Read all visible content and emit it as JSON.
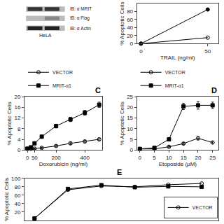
{
  "chart_data": [
    {
      "type": "blot",
      "categories": [
        "IB: α MRIT",
        "IB: α Flag",
        "IB: α Actin"
      ],
      "annotations": [
        "HeLA"
      ]
    },
    {
      "type": "line",
      "xlabel": "TRAIL (ng/ml)",
      "ylabel": "% Apoptotic Cells",
      "x": [
        0,
        50
      ],
      "xlim": [
        -3,
        58
      ],
      "ylim": [
        0,
        100
      ],
      "xticks": [
        0,
        50
      ],
      "yticks": [
        0,
        20,
        40,
        60,
        80
      ],
      "grid": false,
      "series": [
        {
          "values": [
            0,
            15
          ],
          "color": "#000000",
          "marker": "circle-open"
        },
        {
          "values": [
            0,
            85
          ],
          "color": "#000000",
          "marker": "circle"
        }
      ]
    },
    {
      "type": "line",
      "xlabel": "Doxorubicin (ng/ml)",
      "ylabel": "% Apoptotic Cells",
      "x": [
        0,
        25,
        50,
        100,
        200,
        300,
        400,
        500
      ],
      "xlim": [
        -20,
        520
      ],
      "ylim": [
        0,
        20
      ],
      "xticks": [
        0,
        50,
        200,
        400
      ],
      "yticks": [
        0,
        4,
        8,
        12,
        16,
        20
      ],
      "grid": false,
      "legend": "upper left",
      "annotations": [
        "C"
      ],
      "series": [
        {
          "name": "VECTOR",
          "values": [
            0.4,
            0.4,
            0.5,
            0.8,
            1.5,
            2.5,
            3.2,
            4.0
          ],
          "errors": [
            0.2,
            0.2,
            0.3,
            0.3,
            0.4,
            0.5,
            0.5,
            0.5
          ],
          "color": "#000000",
          "marker": "circle-open"
        },
        {
          "name": "MRIT-α1",
          "values": [
            0.5,
            1.0,
            2.5,
            5.0,
            9.0,
            11.5,
            14.0,
            17.0
          ],
          "errors": [
            0.3,
            0.4,
            0.5,
            0.6,
            0.7,
            0.8,
            0.9,
            1.0
          ],
          "color": "#000000",
          "marker": "square"
        }
      ]
    },
    {
      "type": "line",
      "xlabel": "Etoposide (μM)",
      "ylabel": "% Apoptotic Cells",
      "x": [
        0,
        5,
        10,
        15,
        20,
        25
      ],
      "xlim": [
        -1,
        27
      ],
      "ylim": [
        0,
        25
      ],
      "xticks": [
        0,
        5,
        10,
        15,
        20,
        25
      ],
      "yticks": [
        0,
        5,
        10,
        15,
        20,
        25
      ],
      "grid": false,
      "legend": "upper left",
      "annotations": [
        "D"
      ],
      "series": [
        {
          "name": "VECTOR",
          "values": [
            0.5,
            0.5,
            1.5,
            3.0,
            5.5,
            3.5
          ],
          "errors": [
            0.3,
            0.3,
            0.4,
            0.5,
            0.8,
            0.6
          ],
          "color": "#000000",
          "marker": "circle-open"
        },
        {
          "name": "MRIT-α1",
          "values": [
            0.5,
            1.0,
            5.0,
            20.5,
            21.0,
            21.0
          ],
          "errors": [
            0.3,
            0.4,
            0.7,
            1.5,
            1.8,
            1.5
          ],
          "color": "#000000",
          "marker": "square"
        }
      ]
    },
    {
      "type": "line",
      "ylabel": "% Apoptotic Cells",
      "x": [
        0,
        1,
        2,
        3,
        4,
        5
      ],
      "xlim": [
        -0.3,
        5.5
      ],
      "ylim": [
        0,
        100
      ],
      "yticks": [
        20,
        40,
        60,
        80,
        100
      ],
      "grid": false,
      "legend": "lower right",
      "tick_labels": "y",
      "annotations": [
        "E"
      ],
      "series": [
        {
          "name": "VECTOR",
          "values": [
            5,
            73,
            82,
            80,
            85,
            88
          ],
          "color": "#000000",
          "marker": "circle-open"
        },
        {
          "values": [
            5,
            75,
            84,
            79,
            81,
            80
          ],
          "color": "#000000",
          "marker": "square"
        }
      ]
    }
  ]
}
